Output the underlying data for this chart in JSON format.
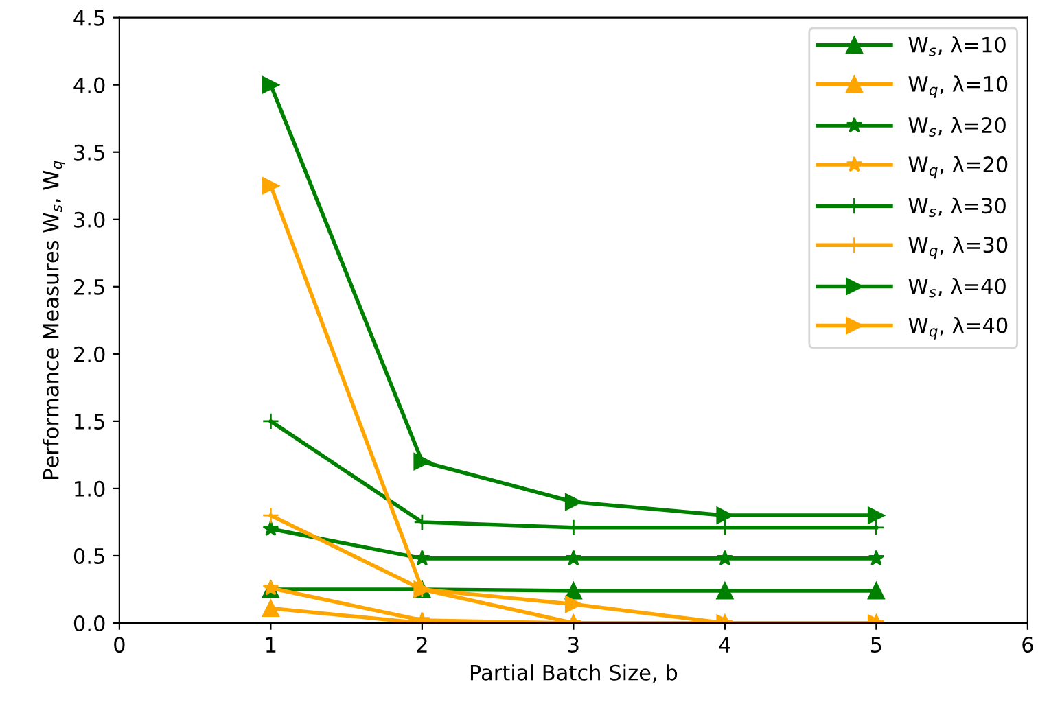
{
  "chart_data": {
    "type": "line",
    "xlabel": "Partial Batch Size, b",
    "ylabel": "Performance Measures W$_{s}$, W$_{q}$",
    "x": [
      1,
      2,
      3,
      4,
      5
    ],
    "series": [
      {
        "name": "W$_{s}$, λ=10",
        "color": "#008000",
        "marker": "triangle",
        "values": [
          0.25,
          0.25,
          0.24,
          0.24,
          0.24
        ]
      },
      {
        "name": "W$_{q}$, λ=10",
        "color": "#ffa500",
        "marker": "triangle",
        "values": [
          0.11,
          0.0,
          0.0,
          0.0,
          0.0
        ]
      },
      {
        "name": "W$_{s}$, λ=20",
        "color": "#008000",
        "marker": "star",
        "values": [
          0.7,
          0.48,
          0.48,
          0.48,
          0.48
        ]
      },
      {
        "name": "W$_{q}$, λ=20",
        "color": "#ffa500",
        "marker": "star",
        "values": [
          0.26,
          0.02,
          0.0,
          0.0,
          0.0
        ]
      },
      {
        "name": "W$_{s}$, λ=30",
        "color": "#008000",
        "marker": "plus",
        "values": [
          1.5,
          0.75,
          0.71,
          0.71,
          0.71
        ]
      },
      {
        "name": "W$_{q}$, λ=30",
        "color": "#ffa500",
        "marker": "plus",
        "values": [
          0.8,
          0.25,
          0.0,
          0.0,
          0.0
        ]
      },
      {
        "name": "W$_{s}$, λ=40",
        "color": "#008000",
        "marker": "triangle-right",
        "values": [
          4.0,
          1.2,
          0.9,
          0.8,
          0.8
        ]
      },
      {
        "name": "W$_{q}$, λ=40",
        "color": "#ffa500",
        "marker": "triangle-right",
        "values": [
          3.25,
          0.25,
          0.14,
          0.0,
          0.0
        ]
      }
    ],
    "xlim": [
      0,
      6
    ],
    "xticks": [
      0,
      1,
      2,
      3,
      4,
      5,
      6
    ],
    "ylim": [
      0,
      4.5
    ],
    "yticks": [
      {
        "value": 0,
        "label": "0.0"
      },
      0.5,
      {
        "value": 1,
        "label": "1.0"
      },
      1.5,
      {
        "value": 2,
        "label": "2.0"
      },
      2.5,
      {
        "value": 3,
        "label": "3.0"
      },
      3.5,
      {
        "value": 4,
        "label": "4.0"
      },
      4.5
    ],
    "grid": false,
    "legend": "top right",
    "line_style": "solid"
  }
}
